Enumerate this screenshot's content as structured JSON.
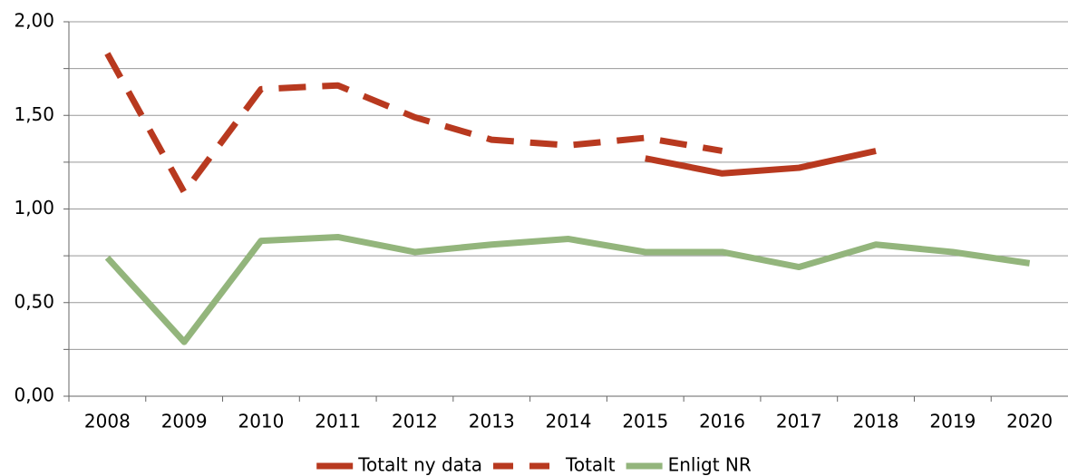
{
  "chart_data": {
    "type": "line",
    "categories": [
      "2008",
      "2009",
      "2010",
      "2011",
      "2012",
      "2013",
      "2014",
      "2015",
      "2016",
      "2017",
      "2018",
      "2019",
      "2020"
    ],
    "series": [
      {
        "name": "Totalt ny data",
        "color": "#b8391f",
        "dashed": false,
        "values": [
          null,
          null,
          null,
          null,
          null,
          null,
          null,
          1.27,
          1.19,
          1.22,
          1.31,
          null,
          null
        ]
      },
      {
        "name": "Totalt",
        "color": "#b8391f",
        "dashed": true,
        "values": [
          1.83,
          1.09,
          1.64,
          1.66,
          1.49,
          1.37,
          1.34,
          1.38,
          1.31,
          null,
          null,
          null,
          null
        ]
      },
      {
        "name": "Enligt NR",
        "color": "#93b57c",
        "dashed": false,
        "values": [
          0.74,
          0.29,
          0.83,
          0.85,
          0.77,
          0.81,
          0.84,
          0.77,
          0.77,
          0.69,
          0.81,
          0.77,
          0.71
        ]
      }
    ],
    "ylim": [
      0,
      2
    ],
    "yticks": [
      {
        "value": 0,
        "label": "0,00"
      },
      {
        "value": 0.5,
        "label": "0,50"
      },
      {
        "value": 1,
        "label": "1,00"
      },
      {
        "value": 1.5,
        "label": "1,50"
      },
      {
        "value": 2,
        "label": "2,00"
      }
    ],
    "minor_yticks": [
      0.25,
      0.75,
      1.25,
      1.75
    ],
    "grid": true,
    "legend": "bottom"
  }
}
